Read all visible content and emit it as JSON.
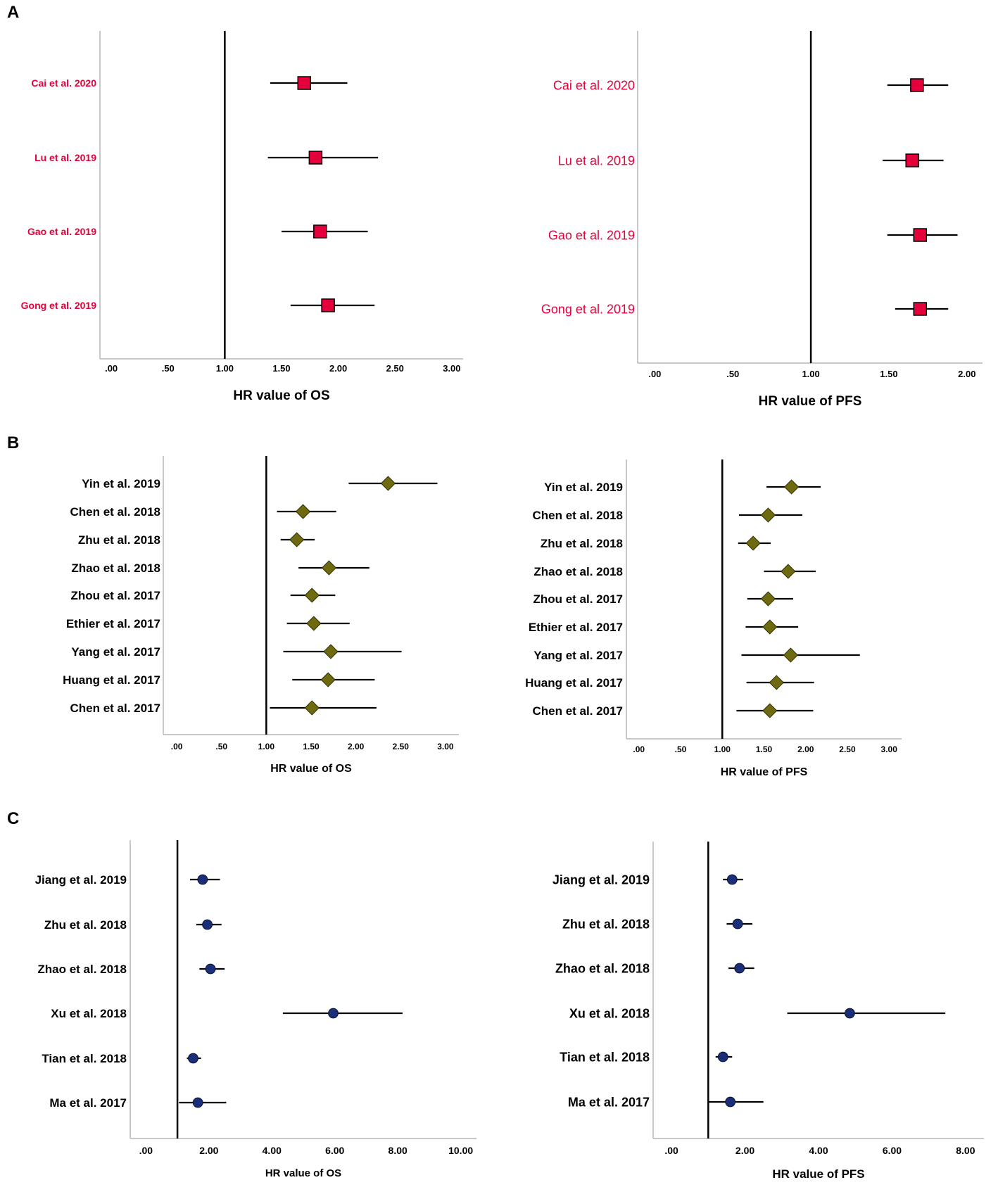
{
  "panel_labels": [
    "A",
    "B",
    "C"
  ],
  "colors": {
    "square": "#e4003a",
    "diamond": "#6e6a10",
    "circle": "#1b2f78",
    "ink": "#000000",
    "axis": "#b5b5b5",
    "red_label": "#e4003a"
  },
  "chart_data": [
    {
      "type": "forest",
      "panel": "A",
      "marker": "square",
      "xlabel": "HR value of  OS",
      "xlim": [
        -0.1,
        3.1
      ],
      "ticks": [
        0,
        0.5,
        1,
        1.5,
        2,
        2.5,
        3
      ],
      "tick_labels": [
        ".00",
        ".50",
        "1.00",
        "1.50",
        "2.00",
        "2.50",
        "3.00"
      ],
      "ref_line": 1,
      "studies": [
        {
          "label": "Cai et al. 2020",
          "hr": 1.7,
          "lo": 1.4,
          "hi": 2.08
        },
        {
          "label": "Lu et al. 2019",
          "hr": 1.8,
          "lo": 1.38,
          "hi": 2.35
        },
        {
          "label": "Gao et al. 2019",
          "hr": 1.84,
          "lo": 1.5,
          "hi": 2.26
        },
        {
          "label": "Gong et al. 2019",
          "hr": 1.91,
          "lo": 1.58,
          "hi": 2.32
        }
      ]
    },
    {
      "type": "forest",
      "panel": "A",
      "marker": "square",
      "xlabel": "HR value of PFS",
      "xlim": [
        -0.11,
        2.1
      ],
      "ticks": [
        0,
        0.5,
        1,
        1.5,
        2
      ],
      "tick_labels": [
        ".00",
        ".50",
        "1.00",
        "1.50",
        "2.00"
      ],
      "ref_line": 1,
      "studies": [
        {
          "label": "Cai et al. 2020",
          "hr": 1.68,
          "lo": 1.49,
          "hi": 1.88
        },
        {
          "label": "Lu et al. 2019",
          "hr": 1.65,
          "lo": 1.46,
          "hi": 1.85
        },
        {
          "label": "Gao et al. 2019",
          "hr": 1.7,
          "lo": 1.49,
          "hi": 1.94
        },
        {
          "label": "Gong et al. 2019",
          "hr": 1.7,
          "lo": 1.54,
          "hi": 1.88
        }
      ]
    },
    {
      "type": "forest",
      "panel": "B",
      "marker": "diamond",
      "xlabel": "HR value of OS",
      "xlim": [
        -0.15,
        3.15
      ],
      "ticks": [
        0,
        0.5,
        1,
        1.5,
        2,
        2.5,
        3
      ],
      "tick_labels": [
        ".00",
        ".50",
        "1.00",
        "1.50",
        "2.00",
        "2.50",
        "3.00"
      ],
      "ref_line": 1,
      "studies": [
        {
          "label": "Yin et al. 2019",
          "hr": 2.36,
          "lo": 1.92,
          "hi": 2.91
        },
        {
          "label": "Chen et al. 2018",
          "hr": 1.41,
          "lo": 1.12,
          "hi": 1.78
        },
        {
          "label": "Zhu et al. 2018",
          "hr": 1.34,
          "lo": 1.16,
          "hi": 1.54
        },
        {
          "label": "Zhao et al. 2018",
          "hr": 1.7,
          "lo": 1.36,
          "hi": 2.15
        },
        {
          "label": "Zhou et al. 2017",
          "hr": 1.51,
          "lo": 1.27,
          "hi": 1.77
        },
        {
          "label": "Ethier et al. 2017",
          "hr": 1.53,
          "lo": 1.23,
          "hi": 1.93
        },
        {
          "label": "Yang et al. 2017",
          "hr": 1.72,
          "lo": 1.19,
          "hi": 2.51
        },
        {
          "label": "Huang et al. 2017",
          "hr": 1.69,
          "lo": 1.29,
          "hi": 2.21
        },
        {
          "label": "Chen et al. 2017",
          "hr": 1.51,
          "lo": 1.04,
          "hi": 2.23
        }
      ]
    },
    {
      "type": "forest",
      "panel": "B",
      "marker": "diamond",
      "xlabel": "HR value of PFS",
      "xlim": [
        -0.15,
        3.15
      ],
      "ticks": [
        0,
        0.5,
        1,
        1.5,
        2,
        2.5,
        3
      ],
      "tick_labels": [
        ".00",
        ".50",
        "1.00",
        "1.50",
        "2.00",
        "2.50",
        "3.00"
      ],
      "ref_line": 1,
      "studies": [
        {
          "label": "Yin et al. 2019",
          "hr": 1.83,
          "lo": 1.53,
          "hi": 2.18
        },
        {
          "label": "Chen et al. 2018",
          "hr": 1.55,
          "lo": 1.2,
          "hi": 1.96
        },
        {
          "label": "Zhu et al. 2018",
          "hr": 1.37,
          "lo": 1.19,
          "hi": 1.58
        },
        {
          "label": "Zhao et al. 2018",
          "hr": 1.79,
          "lo": 1.5,
          "hi": 2.12
        },
        {
          "label": "Zhou et al. 2017",
          "hr": 1.55,
          "lo": 1.3,
          "hi": 1.85
        },
        {
          "label": "Ethier et al. 2017",
          "hr": 1.57,
          "lo": 1.28,
          "hi": 1.91
        },
        {
          "label": "Yang et al. 2017",
          "hr": 1.82,
          "lo": 1.23,
          "hi": 2.65
        },
        {
          "label": "Huang et al. 2017",
          "hr": 1.65,
          "lo": 1.29,
          "hi": 2.1
        },
        {
          "label": "Chen et al. 2017",
          "hr": 1.57,
          "lo": 1.17,
          "hi": 2.09
        }
      ]
    },
    {
      "type": "forest",
      "panel": "C",
      "marker": "circle",
      "xlabel": "HR value of OS",
      "xlim": [
        -0.5,
        10.5
      ],
      "ticks": [
        0,
        2,
        4,
        6,
        8,
        10
      ],
      "tick_labels": [
        ".00",
        "2.00",
        "4.00",
        "6.00",
        "8.00",
        "10.00"
      ],
      "ref_line": 1,
      "studies": [
        {
          "label": "Jiang et al. 2019",
          "hr": 1.8,
          "lo": 1.4,
          "hi": 2.35
        },
        {
          "label": "Zhu et al. 2018",
          "hr": 1.95,
          "lo": 1.6,
          "hi": 2.4
        },
        {
          "label": "Zhao et al. 2018",
          "hr": 2.05,
          "lo": 1.7,
          "hi": 2.5
        },
        {
          "label": "Xu et al. 2018",
          "hr": 5.95,
          "lo": 4.35,
          "hi": 8.15
        },
        {
          "label": "Tian et al. 2018",
          "hr": 1.5,
          "lo": 1.3,
          "hi": 1.75
        },
        {
          "label": "Ma et al. 2017",
          "hr": 1.65,
          "lo": 1.05,
          "hi": 2.55
        }
      ]
    },
    {
      "type": "forest",
      "panel": "C",
      "marker": "circle",
      "xlabel": "HR value of PFS",
      "xlim": [
        -0.5,
        8.5
      ],
      "ticks": [
        0,
        2,
        4,
        6,
        8
      ],
      "tick_labels": [
        ".00",
        "2.00",
        "4.00",
        "6.00",
        "8.00"
      ],
      "ref_line": 1,
      "studies": [
        {
          "label": "Jiang et al. 2019",
          "hr": 1.65,
          "lo": 1.4,
          "hi": 1.95
        },
        {
          "label": "Zhu et al. 2018",
          "hr": 1.8,
          "lo": 1.5,
          "hi": 2.2
        },
        {
          "label": "Zhao et al. 2018",
          "hr": 1.85,
          "lo": 1.55,
          "hi": 2.25
        },
        {
          "label": "Xu et al. 2018",
          "hr": 4.85,
          "lo": 3.15,
          "hi": 7.45
        },
        {
          "label": "Tian et al. 2018",
          "hr": 1.4,
          "lo": 1.2,
          "hi": 1.65
        },
        {
          "label": "Ma et al. 2017",
          "hr": 1.6,
          "lo": 1.0,
          "hi": 2.5
        }
      ]
    }
  ]
}
